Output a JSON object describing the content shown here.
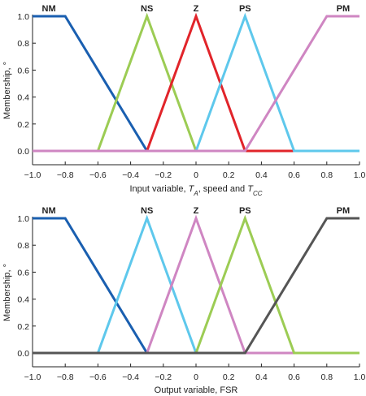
{
  "chart_data": [
    {
      "type": "line",
      "title": "",
      "xlabel": "Input variable, T_A, speed and T_CC",
      "xlabel_parts": {
        "prefix": "Input variable, ",
        "var1": "T",
        "sub1": "A",
        "middle": ", speed and ",
        "var2": "T",
        "sub2": "CC"
      },
      "ylabel": "Membership, °",
      "xlim": [
        -1.0,
        1.0
      ],
      "ylim": [
        0,
        1.0
      ],
      "xticks": [
        "−1.0",
        "−0.8",
        "−0.6",
        "−0.4",
        "−0.2",
        "0",
        "0.2",
        "0.4",
        "0.6",
        "0.8",
        "1.0"
      ],
      "yticks": [
        "0.0",
        "0.2",
        "0.4",
        "0.6",
        "0.8",
        "1.0"
      ],
      "grid": false,
      "series": [
        {
          "name": "NM",
          "color": "#1a5fb0",
          "x": [
            -1.0,
            -0.8,
            -0.3,
            1.0
          ],
          "y": [
            1.0,
            1.0,
            0.0,
            0.0
          ],
          "peak": -0.9
        },
        {
          "name": "NS",
          "color": "#9ccc54",
          "x": [
            -1.0,
            -0.6,
            -0.3,
            0.0,
            1.0
          ],
          "y": [
            0.0,
            0.0,
            1.0,
            0.0,
            0.0
          ],
          "peak": -0.3
        },
        {
          "name": "Z",
          "color": "#e1242a",
          "x": [
            -0.3,
            0.0,
            0.3,
            0.6
          ],
          "y": [
            0.0,
            1.0,
            0.0,
            0.0
          ],
          "peak": 0.0
        },
        {
          "name": "PS",
          "color": "#5ec8ec",
          "x": [
            -1.0,
            0.0,
            0.3,
            0.6,
            1.0
          ],
          "y": [
            0.0,
            0.0,
            1.0,
            0.0,
            0.0
          ],
          "peak": 0.3
        },
        {
          "name": "PM",
          "color": "#cf86c2",
          "x": [
            -1.0,
            0.3,
            0.8,
            1.0
          ],
          "y": [
            0.0,
            0.0,
            1.0,
            1.0
          ],
          "peak": 0.9
        }
      ]
    },
    {
      "type": "line",
      "title": "",
      "xlabel": "Output variable, FSR",
      "ylabel": "Membership, °",
      "xlim": [
        -1.0,
        1.0
      ],
      "ylim": [
        0,
        1.0
      ],
      "xticks": [
        "−1.0",
        "−0.8",
        "−0.6",
        "−0.4",
        "−0.2",
        "0",
        "0.2",
        "0.4",
        "0.6",
        "0.8",
        "1.0"
      ],
      "yticks": [
        "0.0",
        "0.2",
        "0.4",
        "0.6",
        "0.8",
        "1.0"
      ],
      "grid": false,
      "series": [
        {
          "name": "NM",
          "color": "#1a5fb0",
          "x": [
            -1.0,
            -0.8,
            -0.3,
            1.0
          ],
          "y": [
            1.0,
            1.0,
            0.0,
            0.0
          ],
          "peak": -0.9
        },
        {
          "name": "NS",
          "color": "#5ec8ec",
          "x": [
            -1.0,
            -0.6,
            -0.3,
            0.0,
            1.0
          ],
          "y": [
            0.0,
            0.0,
            1.0,
            0.0,
            0.0
          ],
          "peak": -0.3
        },
        {
          "name": "Z",
          "color": "#cf86c2",
          "x": [
            -1.0,
            -0.3,
            0.0,
            0.3,
            1.0
          ],
          "y": [
            0.0,
            0.0,
            1.0,
            0.0,
            0.0
          ],
          "peak": 0.0
        },
        {
          "name": "PS",
          "color": "#9ccc54",
          "x": [
            -1.0,
            0.0,
            0.3,
            0.6,
            1.0
          ],
          "y": [
            0.0,
            0.0,
            1.0,
            0.0,
            0.0
          ],
          "peak": 0.3
        },
        {
          "name": "PM",
          "color": "#555555",
          "x": [
            -1.0,
            0.3,
            0.8,
            1.0
          ],
          "y": [
            0.0,
            0.0,
            1.0,
            1.0
          ],
          "peak": 0.9
        }
      ]
    }
  ]
}
